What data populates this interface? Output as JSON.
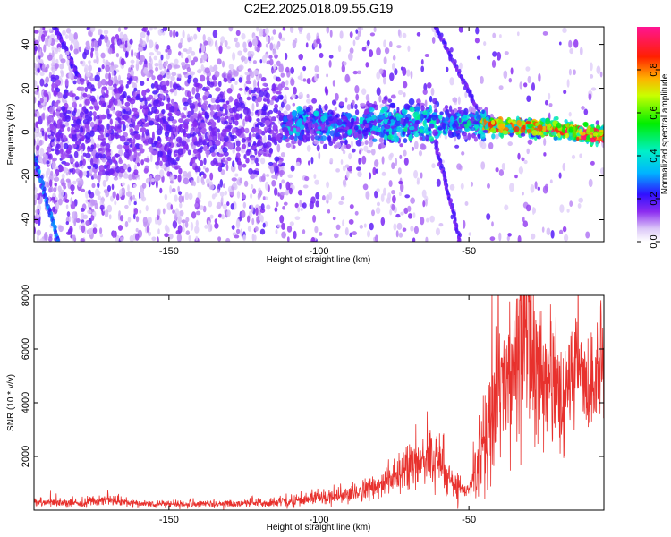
{
  "title": "C2E2.2025.018.09.55.G19",
  "chart_data": [
    {
      "type": "heatmap",
      "xlabel": "Height of straight line (km)",
      "ylabel": "Frequency (Hz)",
      "xlim": [
        -195,
        -5
      ],
      "ylim": [
        -50,
        48
      ],
      "xticks": [
        -150,
        -100,
        -50
      ],
      "yticks": [
        -40,
        -20,
        0,
        20,
        40
      ],
      "colorbar": {
        "label": "Normalized spectral amplitude",
        "range": [
          0,
          1
        ],
        "ticks": [
          0.0,
          0.2,
          0.4,
          0.6,
          0.8
        ]
      },
      "features": {
        "main_band_center_hz": [
          [
            -112,
            4
          ],
          [
            -90,
            3
          ],
          [
            -70,
            4
          ],
          [
            -50,
            4
          ],
          [
            -40,
            3
          ],
          [
            -20,
            1
          ],
          [
            -5,
            -2
          ]
        ],
        "steep_track_hz": [
          [
            -195,
            -10
          ],
          [
            -187,
            -50
          ]
        ],
        "upper_track_hz": [
          [
            -188,
            48
          ],
          [
            -180,
            25
          ]
        ],
        "right_descending_line_hz": [
          [
            -61,
            48
          ],
          [
            -47,
            10
          ]
        ],
        "left_descending_line_hz": [
          [
            -61,
            -5
          ],
          [
            -53,
            -50
          ]
        ]
      }
    },
    {
      "type": "line",
      "xlabel": "Height of straight line (km)",
      "ylabel": "SNR (10 * v/v)",
      "xlim": [
        -195,
        -5
      ],
      "ylim": [
        0,
        8000
      ],
      "xticks": [
        -150,
        -100,
        -50
      ],
      "yticks": [
        2000,
        4000,
        6000,
        8000
      ],
      "color": "#e8312d",
      "series": [
        {
          "x": [
            -195,
            -180,
            -170,
            -160,
            -150,
            -140,
            -130,
            -120,
            -110,
            -100,
            -90,
            -85,
            -80,
            -75,
            -70,
            -65,
            -60,
            -55,
            -50,
            -47,
            -45,
            -42,
            -40,
            -37,
            -35,
            -32,
            -30,
            -28,
            -25,
            -22,
            -20,
            -18,
            -15,
            -12,
            -10,
            -8,
            -5
          ],
          "values": [
            300,
            250,
            400,
            230,
            220,
            230,
            250,
            260,
            300,
            450,
            600,
            750,
            900,
            1200,
            1600,
            1800,
            1900,
            900,
            600,
            1800,
            2600,
            3800,
            4400,
            4900,
            5400,
            6800,
            7800,
            5200,
            4800,
            5000,
            4400,
            4000,
            5500,
            5000,
            4000,
            4800,
            6200
          ],
          "noise": [
            120,
            110,
            150,
            100,
            100,
            100,
            110,
            110,
            140,
            180,
            250,
            300,
            350,
            500,
            600,
            650,
            700,
            450,
            250,
            900,
            1200,
            1700,
            1900,
            2000,
            2100,
            2500,
            2700,
            2200,
            1900,
            1800,
            1500,
            1400,
            1500,
            1400,
            1200,
            1300,
            1500
          ]
        }
      ]
    }
  ]
}
